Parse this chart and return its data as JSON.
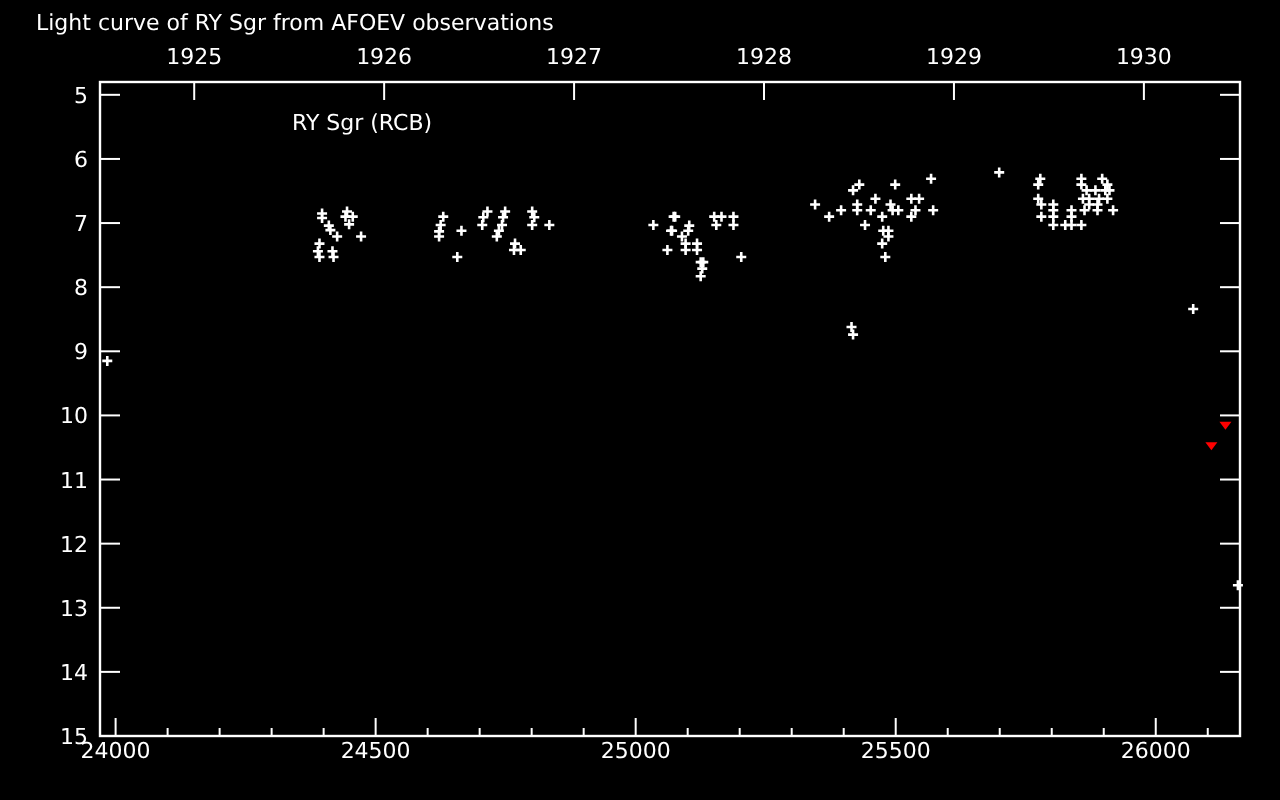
{
  "chart_data": {
    "type": "scatter",
    "title": "Light curve of RY Sgr from AFOEV observations",
    "annotations": [
      "RY Sgr (RCB)"
    ],
    "xlim": [
      23970,
      26162
    ],
    "ylim": [
      15,
      4.8
    ],
    "xticks": [
      24000,
      {
        "value": 24100,
        "label": null
      },
      {
        "value": 24200,
        "label": null
      },
      {
        "value": 24300,
        "label": null
      },
      {
        "value": 24400,
        "label": null
      },
      24500,
      {
        "value": 24600,
        "label": null
      },
      {
        "value": 24700,
        "label": null
      },
      {
        "value": 24800,
        "label": null
      },
      {
        "value": 24900,
        "label": null
      },
      25000,
      {
        "value": 25100,
        "label": null
      },
      {
        "value": 25200,
        "label": null
      },
      {
        "value": 25300,
        "label": null
      },
      {
        "value": 25400,
        "label": null
      },
      25500,
      {
        "value": 25600,
        "label": null
      },
      {
        "value": 25700,
        "label": null
      },
      {
        "value": 25800,
        "label": null
      },
      {
        "value": 25900,
        "label": null
      },
      26000,
      {
        "value": 26100,
        "label": null
      }
    ],
    "x2lim": [
      1924.504,
      1930.506
    ],
    "x2ticks": [
      1925,
      1926,
      1927,
      1928,
      1929,
      1930
    ],
    "yticks": [
      5,
      6,
      7,
      8,
      9,
      10,
      11,
      12,
      13,
      14,
      15
    ],
    "grid": false,
    "series": [
      {
        "color": "#ffffff",
        "marker": "cross",
        "x": [
          23984,
          24397,
          24397,
          24410,
          24413,
          24426,
          24392,
          24389,
          24392,
          24417,
          24419,
          24445,
          24442,
          24456,
          24449,
          24472,
          24630,
          24625,
          24622,
          24622,
          24665,
          24657,
          24715,
          24707,
          24705,
          24749,
          24745,
          24743,
          24737,
          24733,
          24768,
          24766,
          24779,
          24801,
          24805,
          24801,
          24834,
          25034,
          25068,
          25061,
          25073,
          25076,
          25070,
          25089,
          25096,
          25096,
          25103,
          25101,
          25118,
          25118,
          25125,
          25128,
          25125,
          25130,
          25151,
          25165,
          25155,
          25188,
          25188,
          25203,
          25345,
          25372,
          25395,
          25418,
          25430,
          25426,
          25426,
          25452,
          25461,
          25441,
          25415,
          25418,
          25474,
          25476,
          25486,
          25486,
          25474,
          25480,
          25490,
          25494,
          25499,
          25505,
          25530,
          25530,
          25538,
          25545,
          25568,
          25572,
          25699,
          25778,
          25774,
          25774,
          25780,
          25780,
          25803,
          25803,
          25803,
          25803,
          25826,
          25838,
          25838,
          25838,
          25857,
          25857,
          25867,
          25884,
          25860,
          25872,
          25872,
          25863,
          25857,
          25888,
          25891,
          25897,
          25907,
          25903,
          25911,
          25907,
          25888,
          25918,
          26072,
          26158
        ],
        "values": [
          9.15,
          6.85,
          6.92,
          7.04,
          7.11,
          7.21,
          7.32,
          7.44,
          7.53,
          7.44,
          7.53,
          6.82,
          6.9,
          6.9,
          7.02,
          7.21,
          6.9,
          7.03,
          7.13,
          7.21,
          7.12,
          7.53,
          6.82,
          6.91,
          7.03,
          6.82,
          6.91,
          7.03,
          7.12,
          7.21,
          7.32,
          7.42,
          7.42,
          6.82,
          6.91,
          7.03,
          7.03,
          7.03,
          7.12,
          7.42,
          6.9,
          6.9,
          7.12,
          7.21,
          7.32,
          7.42,
          7.04,
          7.12,
          7.32,
          7.42,
          7.61,
          7.71,
          7.83,
          7.61,
          6.9,
          6.9,
          7.03,
          6.9,
          7.03,
          7.53,
          6.71,
          6.9,
          6.8,
          6.49,
          6.4,
          6.71,
          6.8,
          6.8,
          6.62,
          7.03,
          8.62,
          8.74,
          6.9,
          7.12,
          7.12,
          7.21,
          7.32,
          7.53,
          6.71,
          6.8,
          6.4,
          6.8,
          6.62,
          6.9,
          6.8,
          6.62,
          6.31,
          6.8,
          6.21,
          6.31,
          6.4,
          6.62,
          6.71,
          6.9,
          6.71,
          6.8,
          6.9,
          7.03,
          7.03,
          6.8,
          6.9,
          7.03,
          6.31,
          6.4,
          6.49,
          6.49,
          6.62,
          6.62,
          6.71,
          6.8,
          7.03,
          6.8,
          6.62,
          6.31,
          6.4,
          6.49,
          6.49,
          6.62,
          6.71,
          6.8,
          8.34,
          12.65
        ]
      },
      {
        "color": "#ff0000",
        "marker": "triangle",
        "x": [
          26134,
          26107
        ],
        "values": [
          10.16,
          10.48
        ]
      }
    ]
  }
}
